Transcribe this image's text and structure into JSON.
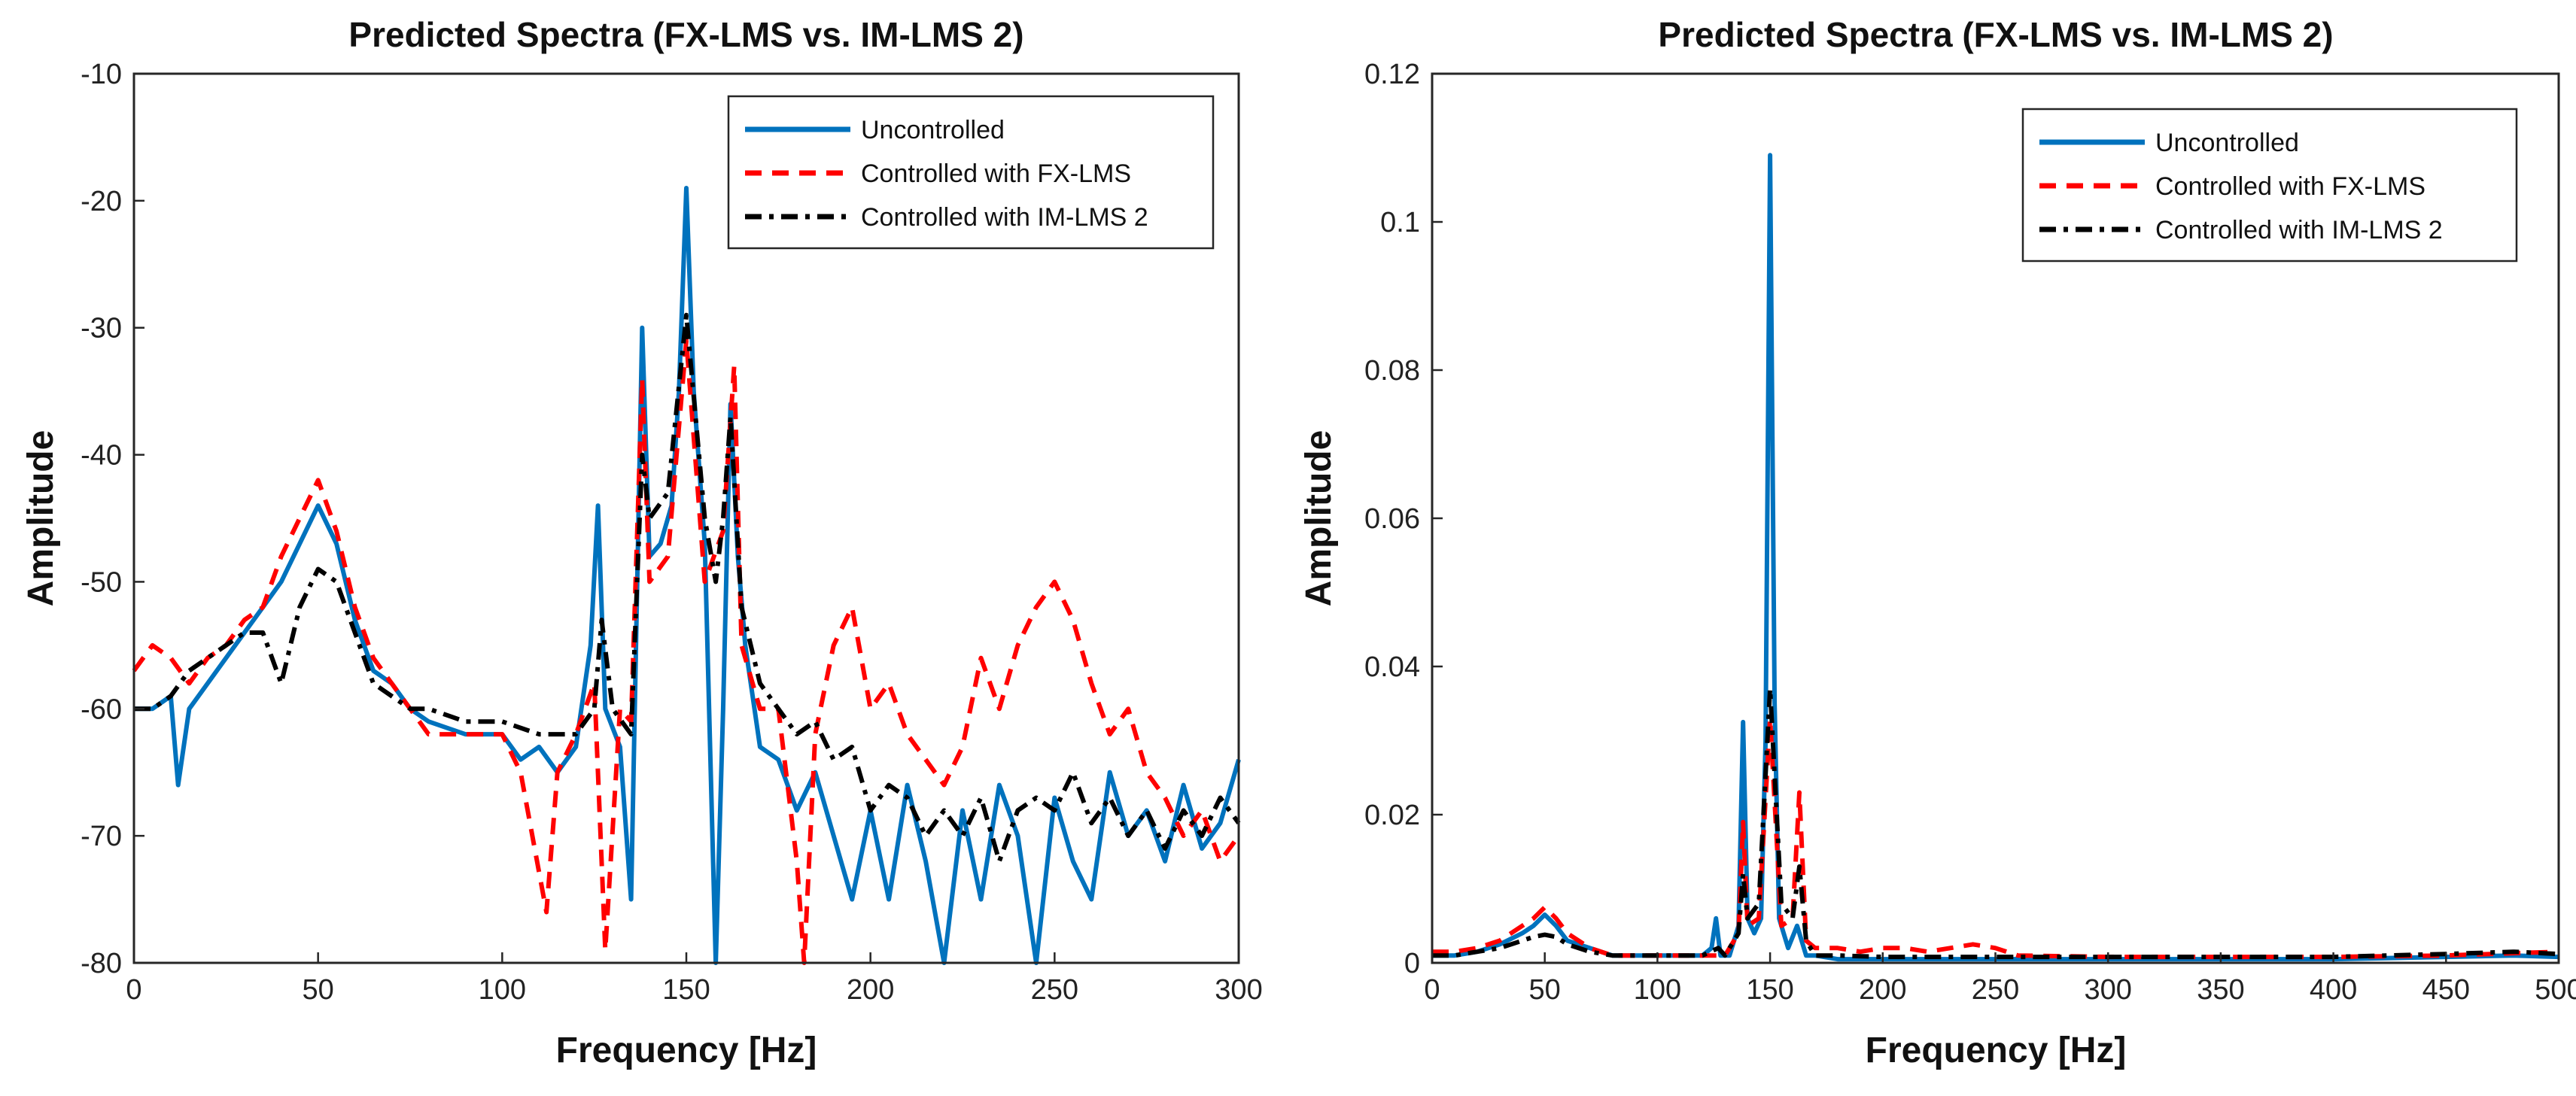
{
  "chart_data": [
    {
      "type": "line",
      "title": "Predicted Spectra (FX-LMS vs. IM-LMS 2)",
      "xlabel": "Frequency [Hz]",
      "ylabel": "Amplitude",
      "xlim": [
        0,
        300
      ],
      "ylim": [
        -80,
        -10
      ],
      "xticks": [
        0,
        50,
        100,
        150,
        200,
        250,
        300
      ],
      "yticks": [
        -80,
        -70,
        -60,
        -50,
        -40,
        -30,
        -20,
        -10
      ],
      "legend_position": "top-right",
      "series": [
        {
          "name": "Uncontrolled",
          "color": "#0072BD",
          "style": "solid",
          "x": [
            0,
            5,
            10,
            12,
            15,
            20,
            25,
            30,
            35,
            40,
            45,
            50,
            55,
            60,
            65,
            70,
            75,
            80,
            90,
            100,
            105,
            110,
            115,
            120,
            124,
            126,
            128,
            132,
            135,
            138,
            140,
            143,
            146,
            148,
            150,
            152,
            155,
            158,
            160,
            162,
            164,
            166,
            170,
            175,
            180,
            185,
            190,
            195,
            200,
            205,
            210,
            215,
            220,
            225,
            230,
            235,
            240,
            245,
            250,
            255,
            260,
            265,
            270,
            275,
            280,
            285,
            290,
            295,
            300
          ],
          "values": [
            -60,
            -60,
            -59,
            -66,
            -60,
            -58,
            -56,
            -54,
            -52,
            -50,
            -47,
            -44,
            -47,
            -53,
            -57,
            -58,
            -60,
            -61,
            -62,
            -62,
            -64,
            -63,
            -65,
            -63,
            -55,
            -44,
            -60,
            -63,
            -75,
            -30,
            -48,
            -47,
            -44,
            -35,
            -19,
            -35,
            -47,
            -80,
            -60,
            -36,
            -48,
            -55,
            -63,
            -64,
            -68,
            -65,
            -70,
            -75,
            -68,
            -75,
            -66,
            -72,
            -80,
            -68,
            -75,
            -66,
            -70,
            -80,
            -67,
            -72,
            -75,
            -65,
            -70,
            -68,
            -72,
            -66,
            -71,
            -69,
            -64
          ]
        },
        {
          "name": "Controlled with FX-LMS",
          "color": "#FF0000",
          "style": "dashed",
          "x": [
            0,
            5,
            10,
            15,
            20,
            25,
            30,
            35,
            40,
            45,
            50,
            55,
            60,
            65,
            70,
            75,
            80,
            90,
            100,
            105,
            112,
            115,
            120,
            125,
            128,
            132,
            135,
            138,
            140,
            145,
            150,
            155,
            160,
            163,
            165,
            170,
            175,
            180,
            182,
            185,
            190,
            195,
            200,
            205,
            210,
            215,
            220,
            225,
            230,
            235,
            240,
            245,
            250,
            255,
            260,
            265,
            270,
            275,
            280,
            285,
            290,
            295,
            300
          ],
          "values": [
            -57,
            -55,
            -56,
            -58,
            -56,
            -55,
            -53,
            -52,
            -48,
            -45,
            -42,
            -46,
            -52,
            -56,
            -58,
            -60,
            -62,
            -62,
            -62,
            -65,
            -76,
            -65,
            -62,
            -58,
            -79,
            -60,
            -61,
            -34,
            -50,
            -48,
            -31,
            -50,
            -46,
            -33,
            -55,
            -60,
            -60,
            -72,
            -80,
            -62,
            -55,
            -52,
            -60,
            -58,
            -62,
            -64,
            -66,
            -63,
            -56,
            -60,
            -55,
            -52,
            -50,
            -53,
            -58,
            -62,
            -60,
            -65,
            -67,
            -70,
            -68,
            -72,
            -70
          ]
        },
        {
          "name": "Controlled with IM-LMS 2",
          "color": "#000000",
          "style": "dashdot",
          "x": [
            0,
            5,
            10,
            15,
            20,
            25,
            30,
            35,
            40,
            45,
            50,
            55,
            60,
            65,
            70,
            75,
            80,
            90,
            100,
            110,
            120,
            125,
            127,
            130,
            135,
            138,
            140,
            145,
            150,
            155,
            158,
            160,
            162,
            165,
            170,
            175,
            180,
            185,
            190,
            195,
            200,
            205,
            210,
            215,
            220,
            225,
            230,
            235,
            240,
            245,
            250,
            255,
            260,
            265,
            270,
            275,
            280,
            285,
            290,
            295,
            300
          ],
          "values": [
            -60,
            -60,
            -59,
            -57,
            -56,
            -55,
            -54,
            -54,
            -58,
            -52,
            -49,
            -50,
            -54,
            -58,
            -59,
            -60,
            -60,
            -61,
            -61,
            -62,
            -62,
            -60,
            -53,
            -60,
            -62,
            -40,
            -45,
            -43,
            -29,
            -45,
            -50,
            -45,
            -37,
            -52,
            -58,
            -60,
            -62,
            -61,
            -64,
            -63,
            -68,
            -66,
            -67,
            -70,
            -68,
            -70,
            -67,
            -72,
            -68,
            -67,
            -68,
            -65,
            -69,
            -67,
            -70,
            -68,
            -71,
            -68,
            -70,
            -67,
            -69
          ]
        }
      ]
    },
    {
      "type": "line",
      "title": "Predicted Spectra (FX-LMS vs. IM-LMS 2)",
      "xlabel": "Frequency [Hz]",
      "ylabel": "Amplitude",
      "xlim": [
        0,
        500
      ],
      "ylim": [
        0,
        0.12
      ],
      "xticks": [
        0,
        50,
        100,
        150,
        200,
        250,
        300,
        350,
        400,
        450,
        500
      ],
      "yticks": [
        0,
        0.02,
        0.04,
        0.06,
        0.08,
        0.1,
        0.12
      ],
      "legend_position": "top-right",
      "series": [
        {
          "name": "Uncontrolled",
          "color": "#0072BD",
          "style": "solid",
          "x": [
            0,
            10,
            20,
            30,
            40,
            45,
            50,
            55,
            60,
            70,
            80,
            100,
            120,
            124,
            126,
            128,
            132,
            136,
            138,
            140,
            143,
            146,
            148,
            150,
            152,
            154,
            158,
            162,
            166,
            170,
            180,
            200,
            250,
            300,
            350,
            400,
            450,
            480,
            500
          ],
          "values": [
            0.001,
            0.001,
            0.0015,
            0.0025,
            0.004,
            0.005,
            0.0065,
            0.005,
            0.003,
            0.002,
            0.001,
            0.001,
            0.001,
            0.002,
            0.006,
            0.001,
            0.001,
            0.005,
            0.0325,
            0.006,
            0.004,
            0.006,
            0.03,
            0.109,
            0.035,
            0.006,
            0.002,
            0.005,
            0.001,
            0.001,
            0.0005,
            0.0005,
            0.0005,
            0.0005,
            0.0005,
            0.0005,
            0.0008,
            0.001,
            0.0008
          ]
        },
        {
          "name": "Controlled with FX-LMS",
          "color": "#FF0000",
          "style": "dashed",
          "x": [
            0,
            10,
            20,
            30,
            40,
            45,
            50,
            55,
            60,
            70,
            80,
            100,
            120,
            130,
            136,
            138,
            140,
            145,
            150,
            155,
            160,
            163,
            166,
            170,
            180,
            190,
            200,
            210,
            220,
            230,
            240,
            250,
            260,
            300,
            350,
            400,
            450,
            500
          ],
          "values": [
            0.0015,
            0.0015,
            0.002,
            0.003,
            0.005,
            0.006,
            0.0075,
            0.006,
            0.004,
            0.002,
            0.001,
            0.001,
            0.001,
            0.001,
            0.004,
            0.019,
            0.005,
            0.006,
            0.033,
            0.005,
            0.006,
            0.023,
            0.003,
            0.002,
            0.002,
            0.0015,
            0.002,
            0.002,
            0.0015,
            0.002,
            0.0025,
            0.002,
            0.001,
            0.0008,
            0.0008,
            0.0008,
            0.001,
            0.0015
          ]
        },
        {
          "name": "Controlled with IM-LMS 2",
          "color": "#000000",
          "style": "dashdot",
          "x": [
            0,
            10,
            20,
            30,
            40,
            45,
            50,
            55,
            60,
            70,
            80,
            100,
            120,
            127,
            130,
            136,
            138,
            140,
            145,
            150,
            155,
            160,
            163,
            166,
            170,
            180,
            200,
            250,
            300,
            350,
            400,
            450,
            480,
            500
          ],
          "values": [
            0.001,
            0.001,
            0.0015,
            0.002,
            0.003,
            0.0035,
            0.0038,
            0.0035,
            0.0025,
            0.0015,
            0.001,
            0.001,
            0.001,
            0.002,
            0.001,
            0.004,
            0.012,
            0.006,
            0.008,
            0.037,
            0.008,
            0.006,
            0.013,
            0.003,
            0.001,
            0.001,
            0.0008,
            0.0008,
            0.0008,
            0.0008,
            0.0008,
            0.0012,
            0.0015,
            0.0012
          ]
        }
      ]
    }
  ]
}
